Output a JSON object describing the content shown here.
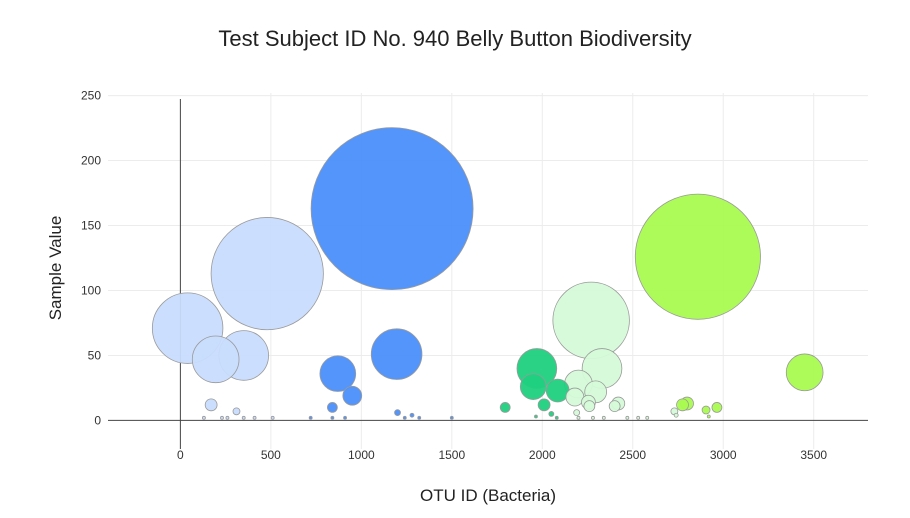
{
  "chart_data": {
    "type": "scatter",
    "title": "Test Subject ID No. 940 Belly Button Biodiversity",
    "xlabel": "OTU ID (Bacteria)",
    "ylabel": "Sample Value",
    "xlim": [
      -400,
      3800
    ],
    "ylim": [
      -22,
      252
    ],
    "x_ticks": [
      0,
      500,
      1000,
      1500,
      2000,
      2500,
      3000,
      3500
    ],
    "y_ticks": [
      0,
      50,
      100,
      150,
      200,
      250
    ],
    "grid": true,
    "bubble_size_encodes": "sample value",
    "points": [
      {
        "x": 40,
        "y": 71,
        "color": "#c8dcfd"
      },
      {
        "x": 195,
        "y": 47,
        "color": "#c8dcfd"
      },
      {
        "x": 350,
        "y": 50,
        "color": "#c8dcfd"
      },
      {
        "x": 480,
        "y": 113,
        "color": "#c8dcfd"
      },
      {
        "x": 170,
        "y": 12,
        "color": "#c8dcfd"
      },
      {
        "x": 310,
        "y": 7,
        "color": "#c8dcfd"
      },
      {
        "x": 130,
        "y": 2,
        "color": "#c8dcfd"
      },
      {
        "x": 230,
        "y": 2,
        "color": "#c8dcfd"
      },
      {
        "x": 260,
        "y": 2,
        "color": "#c8dcfd"
      },
      {
        "x": 350,
        "y": 2,
        "color": "#c8dcfd"
      },
      {
        "x": 410,
        "y": 2,
        "color": "#c8dcfd"
      },
      {
        "x": 510,
        "y": 2,
        "color": "#c8dcfd"
      },
      {
        "x": 1170,
        "y": 163,
        "color": "#4a8ffb"
      },
      {
        "x": 870,
        "y": 36,
        "color": "#4a8ffb"
      },
      {
        "x": 1195,
        "y": 51,
        "color": "#4a8ffb"
      },
      {
        "x": 950,
        "y": 19,
        "color": "#4a8ffb"
      },
      {
        "x": 840,
        "y": 10,
        "color": "#4a8ffb"
      },
      {
        "x": 1200,
        "y": 6,
        "color": "#4a8ffb"
      },
      {
        "x": 1280,
        "y": 4,
        "color": "#4a8ffb"
      },
      {
        "x": 720,
        "y": 2,
        "color": "#4a8ffb"
      },
      {
        "x": 840,
        "y": 2,
        "color": "#4a8ffb"
      },
      {
        "x": 910,
        "y": 2,
        "color": "#4a8ffb"
      },
      {
        "x": 1240,
        "y": 2,
        "color": "#4a8ffb"
      },
      {
        "x": 1320,
        "y": 2,
        "color": "#4a8ffb"
      },
      {
        "x": 1500,
        "y": 2,
        "color": "#4a8ffb"
      },
      {
        "x": 1970,
        "y": 40,
        "color": "#1fd07f"
      },
      {
        "x": 1950,
        "y": 26,
        "color": "#1fd07f"
      },
      {
        "x": 2085,
        "y": 23,
        "color": "#1fd07f"
      },
      {
        "x": 2010,
        "y": 12,
        "color": "#1fd07f"
      },
      {
        "x": 1795,
        "y": 10,
        "color": "#1fd07f"
      },
      {
        "x": 1965,
        "y": 3,
        "color": "#1fd07f"
      },
      {
        "x": 2050,
        "y": 5,
        "color": "#1fd07f"
      },
      {
        "x": 2080,
        "y": 2,
        "color": "#1fd07f"
      },
      {
        "x": 2270,
        "y": 77,
        "color": "#d5fbd8"
      },
      {
        "x": 2330,
        "y": 40,
        "color": "#d5fbd8"
      },
      {
        "x": 2200,
        "y": 28,
        "color": "#d5fbd8"
      },
      {
        "x": 2295,
        "y": 22,
        "color": "#d5fbd8"
      },
      {
        "x": 2180,
        "y": 18,
        "color": "#d5fbd8"
      },
      {
        "x": 2255,
        "y": 14,
        "color": "#d5fbd8"
      },
      {
        "x": 2420,
        "y": 13,
        "color": "#d5fbd8"
      },
      {
        "x": 2400,
        "y": 11,
        "color": "#d5fbd8"
      },
      {
        "x": 2260,
        "y": 11,
        "color": "#d5fbd8"
      },
      {
        "x": 2190,
        "y": 6,
        "color": "#d5fbd8"
      },
      {
        "x": 2200,
        "y": 2,
        "color": "#d5fbd8"
      },
      {
        "x": 2280,
        "y": 2,
        "color": "#d5fbd8"
      },
      {
        "x": 2340,
        "y": 2,
        "color": "#d5fbd8"
      },
      {
        "x": 2470,
        "y": 2,
        "color": "#d5fbd8"
      },
      {
        "x": 2530,
        "y": 2,
        "color": "#d5fbd8"
      },
      {
        "x": 2580,
        "y": 2,
        "color": "#d5fbd8"
      },
      {
        "x": 2860,
        "y": 126,
        "color": "#a9fb4f"
      },
      {
        "x": 3450,
        "y": 37,
        "color": "#a9fb4f"
      },
      {
        "x": 2800,
        "y": 13,
        "color": "#a9fb4f"
      },
      {
        "x": 2775,
        "y": 12,
        "color": "#a9fb4f"
      },
      {
        "x": 2965,
        "y": 10,
        "color": "#a9fb4f"
      },
      {
        "x": 2905,
        "y": 8,
        "color": "#a9fb4f"
      },
      {
        "x": 2730,
        "y": 7,
        "color": "#d5fbd8"
      },
      {
        "x": 2740,
        "y": 4,
        "color": "#d5fbd8"
      },
      {
        "x": 2920,
        "y": 3,
        "color": "#a9fb4f"
      }
    ]
  }
}
